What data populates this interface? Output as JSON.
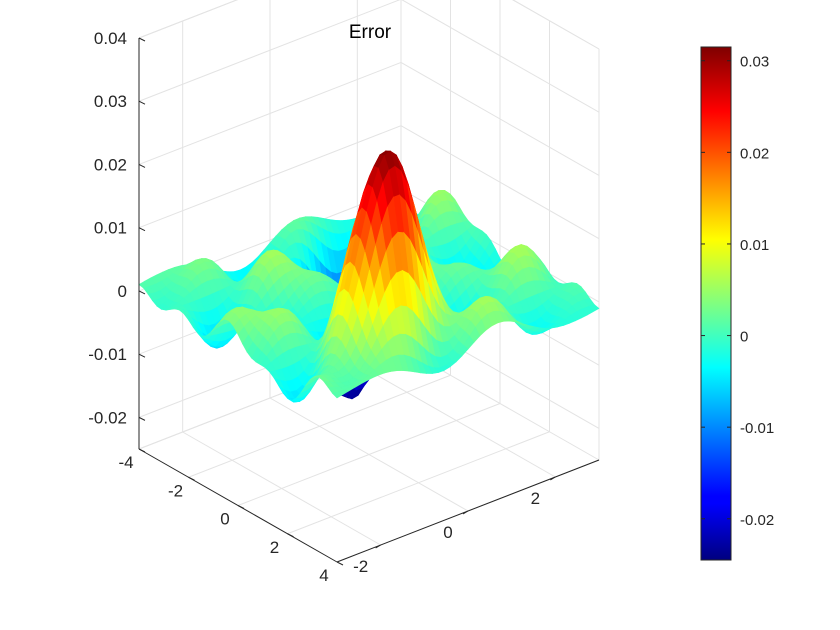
{
  "chart_data": {
    "type": "surface",
    "title": "Error",
    "xlabel": "",
    "ylabel": "",
    "zlabel": "",
    "xlim": [
      -3,
      3
    ],
    "ylim": [
      -4,
      4
    ],
    "zlim": [
      -0.025,
      0.04
    ],
    "x_ticks": [
      -2,
      0,
      2
    ],
    "x_tick_labels": [
      "-2",
      "0",
      "2"
    ],
    "y_ticks": [
      -4,
      -2,
      0,
      2,
      4
    ],
    "y_tick_labels": [
      "-4",
      "-2",
      "0",
      "2",
      "4"
    ],
    "z_ticks": [
      -0.02,
      -0.01,
      0,
      0.01,
      0.02,
      0.03,
      0.04
    ],
    "z_tick_labels": [
      "-0.02",
      "-0.01",
      "0",
      "0.01",
      "0.02",
      "0.03",
      "0.04"
    ],
    "grid": true,
    "colormap": "jet",
    "colorbar": {
      "range": [
        -0.0245,
        0.0315
      ],
      "ticks": [
        -0.02,
        -0.01,
        0,
        0.01,
        0.02,
        0.03
      ],
      "tick_labels": [
        "-0.02",
        "-0.01",
        "0",
        "0.01",
        "0.02",
        "0.03"
      ],
      "placement": "right"
    },
    "features": {
      "peak": {
        "x": -1.0,
        "y": 2.5,
        "z": 0.031
      },
      "trough": {
        "x": 1.0,
        "y": -2.5,
        "z": -0.024
      },
      "ripple_amplitude": 0.005
    }
  }
}
